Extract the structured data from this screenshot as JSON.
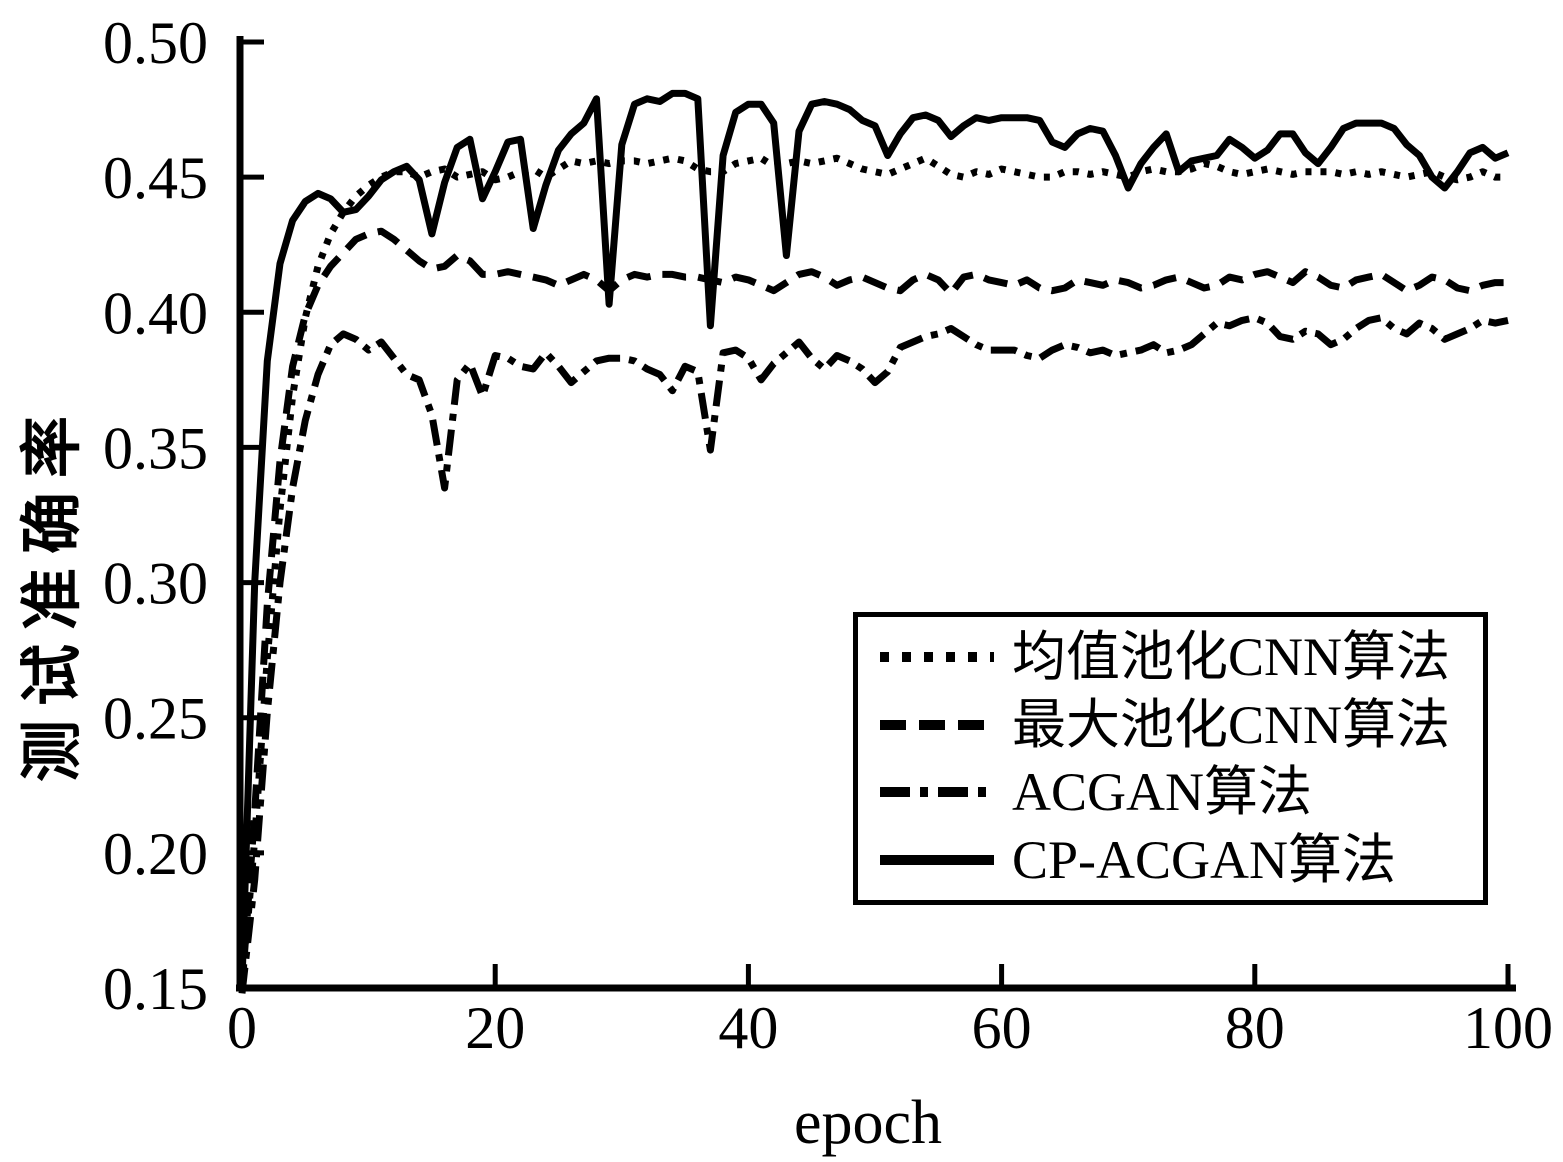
{
  "chart_data": {
    "type": "line",
    "title": "",
    "xlabel": "epoch",
    "ylabel": "测试准确率",
    "xlim": [
      0,
      100
    ],
    "ylim": [
      0.15,
      0.5
    ],
    "grid": false,
    "legend_position": "inside lower-right",
    "axis_color": "#000000",
    "background_color": "#ffffff",
    "x_ticks": [
      0,
      20,
      40,
      60,
      80,
      100
    ],
    "y_ticks": [
      0.15,
      0.2,
      0.25,
      0.3,
      0.35,
      0.4,
      0.45,
      0.5
    ],
    "y_tick_labels": [
      "0.15",
      "0.20",
      "0.25",
      "0.30",
      "0.35",
      "0.40",
      "0.45",
      "0.50"
    ],
    "x": [
      0,
      1,
      2,
      3,
      4,
      5,
      6,
      7,
      8,
      9,
      10,
      11,
      12,
      13,
      14,
      15,
      16,
      17,
      18,
      19,
      20,
      21,
      22,
      23,
      24,
      25,
      26,
      27,
      28,
      29,
      30,
      31,
      32,
      33,
      34,
      35,
      36,
      37,
      38,
      39,
      40,
      41,
      42,
      43,
      44,
      45,
      46,
      47,
      48,
      49,
      50,
      51,
      52,
      53,
      54,
      55,
      56,
      57,
      58,
      59,
      60,
      61,
      62,
      63,
      64,
      65,
      66,
      67,
      68,
      69,
      70,
      71,
      72,
      73,
      74,
      75,
      76,
      77,
      78,
      79,
      80,
      81,
      82,
      83,
      84,
      85,
      86,
      87,
      88,
      89,
      90,
      91,
      92,
      93,
      94,
      95,
      96,
      97,
      98,
      99,
      100
    ],
    "series": [
      {
        "id": "mean-pool-cnn",
        "name": "均值池化CNN算法",
        "style": "dotted",
        "color": "#000000",
        "y": [
          0.15,
          0.205,
          0.272,
          0.327,
          0.369,
          0.398,
          0.417,
          0.429,
          0.437,
          0.443,
          0.447,
          0.45,
          0.452,
          0.452,
          0.45,
          0.452,
          0.453,
          0.45,
          0.451,
          0.452,
          0.449,
          0.45,
          0.452,
          0.453,
          0.45,
          0.453,
          0.456,
          0.455,
          0.456,
          0.455,
          0.456,
          0.456,
          0.455,
          0.456,
          0.457,
          0.456,
          0.453,
          0.452,
          0.452,
          0.455,
          0.456,
          0.457,
          0.454,
          0.455,
          0.456,
          0.455,
          0.456,
          0.457,
          0.455,
          0.453,
          0.452,
          0.451,
          0.453,
          0.455,
          0.457,
          0.454,
          0.451,
          0.45,
          0.452,
          0.451,
          0.453,
          0.452,
          0.451,
          0.45,
          0.45,
          0.452,
          0.452,
          0.451,
          0.452,
          0.451,
          0.45,
          0.452,
          0.453,
          0.452,
          0.452,
          0.453,
          0.455,
          0.454,
          0.452,
          0.451,
          0.452,
          0.453,
          0.452,
          0.451,
          0.452,
          0.452,
          0.452,
          0.451,
          0.452,
          0.451,
          0.452,
          0.451,
          0.45,
          0.451,
          0.452,
          0.45,
          0.449,
          0.45,
          0.452,
          0.45,
          0.45
        ]
      },
      {
        "id": "max-pool-cnn",
        "name": "最大池化CNN算法",
        "style": "dashed",
        "color": "#000000",
        "y": [
          0.15,
          0.215,
          0.292,
          0.345,
          0.38,
          0.399,
          0.41,
          0.417,
          0.422,
          0.427,
          0.429,
          0.43,
          0.427,
          0.423,
          0.419,
          0.416,
          0.417,
          0.421,
          0.419,
          0.414,
          0.414,
          0.415,
          0.414,
          0.413,
          0.412,
          0.41,
          0.412,
          0.414,
          0.412,
          0.408,
          0.412,
          0.414,
          0.413,
          0.414,
          0.414,
          0.413,
          0.413,
          0.412,
          0.411,
          0.413,
          0.412,
          0.41,
          0.408,
          0.411,
          0.414,
          0.415,
          0.413,
          0.41,
          0.412,
          0.413,
          0.411,
          0.409,
          0.408,
          0.412,
          0.414,
          0.412,
          0.407,
          0.413,
          0.414,
          0.412,
          0.411,
          0.41,
          0.412,
          0.409,
          0.408,
          0.409,
          0.412,
          0.411,
          0.41,
          0.412,
          0.411,
          0.409,
          0.41,
          0.412,
          0.413,
          0.411,
          0.409,
          0.41,
          0.413,
          0.412,
          0.414,
          0.415,
          0.413,
          0.411,
          0.415,
          0.413,
          0.41,
          0.409,
          0.412,
          0.413,
          0.414,
          0.411,
          0.408,
          0.41,
          0.413,
          0.412,
          0.409,
          0.408,
          0.41,
          0.411,
          0.411
        ]
      },
      {
        "id": "acgan",
        "name": "ACGAN算法",
        "style": "dashdot",
        "color": "#000000",
        "y": [
          0.148,
          0.19,
          0.252,
          0.3,
          0.335,
          0.36,
          0.377,
          0.388,
          0.392,
          0.39,
          0.386,
          0.389,
          0.383,
          0.377,
          0.375,
          0.362,
          0.335,
          0.375,
          0.381,
          0.369,
          0.384,
          0.383,
          0.38,
          0.379,
          0.385,
          0.38,
          0.374,
          0.378,
          0.382,
          0.383,
          0.383,
          0.382,
          0.379,
          0.377,
          0.371,
          0.38,
          0.378,
          0.349,
          0.385,
          0.386,
          0.383,
          0.375,
          0.381,
          0.385,
          0.389,
          0.383,
          0.379,
          0.384,
          0.382,
          0.379,
          0.374,
          0.378,
          0.387,
          0.389,
          0.391,
          0.392,
          0.394,
          0.391,
          0.388,
          0.386,
          0.386,
          0.386,
          0.384,
          0.383,
          0.386,
          0.388,
          0.387,
          0.385,
          0.386,
          0.384,
          0.385,
          0.386,
          0.388,
          0.385,
          0.386,
          0.388,
          0.392,
          0.396,
          0.395,
          0.397,
          0.398,
          0.396,
          0.391,
          0.39,
          0.393,
          0.392,
          0.388,
          0.39,
          0.394,
          0.397,
          0.398,
          0.394,
          0.392,
          0.396,
          0.394,
          0.39,
          0.392,
          0.394,
          0.397,
          0.396,
          0.397
        ]
      },
      {
        "id": "cp-acgan",
        "name": "CP-ACGAN算法",
        "style": "solid",
        "color": "#000000",
        "y": [
          0.152,
          0.3,
          0.382,
          0.418,
          0.434,
          0.441,
          0.444,
          0.442,
          0.437,
          0.438,
          0.443,
          0.449,
          0.452,
          0.454,
          0.449,
          0.429,
          0.448,
          0.461,
          0.464,
          0.442,
          0.452,
          0.463,
          0.464,
          0.431,
          0.447,
          0.46,
          0.466,
          0.47,
          0.479,
          0.403,
          0.462,
          0.477,
          0.479,
          0.478,
          0.481,
          0.481,
          0.479,
          0.395,
          0.458,
          0.474,
          0.477,
          0.477,
          0.47,
          0.421,
          0.467,
          0.477,
          0.478,
          0.477,
          0.475,
          0.471,
          0.469,
          0.458,
          0.466,
          0.472,
          0.473,
          0.471,
          0.465,
          0.469,
          0.472,
          0.471,
          0.472,
          0.472,
          0.472,
          0.471,
          0.463,
          0.461,
          0.466,
          0.468,
          0.467,
          0.458,
          0.446,
          0.455,
          0.461,
          0.466,
          0.452,
          0.456,
          0.457,
          0.458,
          0.464,
          0.461,
          0.457,
          0.46,
          0.466,
          0.466,
          0.459,
          0.455,
          0.461,
          0.468,
          0.47,
          0.47,
          0.47,
          0.468,
          0.462,
          0.458,
          0.45,
          0.446,
          0.452,
          0.459,
          0.461,
          0.457,
          0.459
        ]
      }
    ]
  }
}
